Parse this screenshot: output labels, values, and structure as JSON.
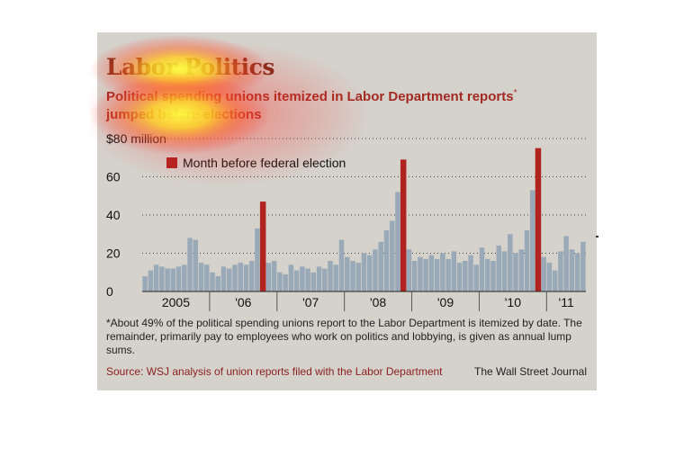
{
  "title": "Labor Politics",
  "subtitle": "Political spending unions itemized in Labor Department reports",
  "subtitle_marker": "*",
  "subtitle_line2": "jumped before elections",
  "footnote": "*About 49% of the political spending unions report to the Labor Department is itemized by date. The remainder, primarily pay to employees who work on politics and lobbying, is given as annual lump sums.",
  "source": "Source: WSJ analysis of union reports filed with the Labor Department",
  "credit": "The Wall Street Journal",
  "colors": {
    "background": "#d5d1cb",
    "bar": "#9aa9b8",
    "highlight": "#b0231f",
    "title": "#7a2a1c",
    "subtitle": "#a22a22"
  },
  "chart_data": {
    "type": "bar",
    "ylim": [
      0,
      80
    ],
    "yticks": [
      {
        "value": 0,
        "label": "0"
      },
      {
        "value": 20,
        "label": "20"
      },
      {
        "value": 40,
        "label": "40"
      },
      {
        "value": 60,
        "label": "60"
      },
      {
        "value": 80,
        "label": "$80 million"
      }
    ],
    "grid": "dotted",
    "legend": {
      "label": "Month before federal election",
      "color": "#b0231f",
      "placement": "top-left"
    },
    "start_month": "Jan 2005",
    "year_labels": [
      "2005",
      "'06",
      "'07",
      "'08",
      "'09",
      "'10",
      "'11"
    ],
    "values": [
      8,
      11,
      14,
      13,
      12,
      12,
      13,
      14,
      28,
      27,
      15,
      14,
      10,
      8,
      13,
      12,
      14,
      15,
      14,
      16,
      33,
      47,
      15,
      16,
      10,
      9,
      14,
      11,
      13,
      12,
      10,
      13,
      12,
      16,
      14,
      27,
      18,
      16,
      15,
      20,
      19,
      22,
      26,
      32,
      37,
      52,
      69,
      22,
      16,
      18,
      17,
      19,
      17,
      20,
      17,
      21,
      15,
      16,
      19,
      14,
      23,
      17,
      16,
      24,
      21,
      30,
      20,
      22,
      32,
      53,
      75,
      18,
      15,
      11,
      21,
      29,
      22,
      20,
      26
    ],
    "highlighted_months": [
      "Oct 2006",
      "Oct 2008",
      "Oct 2010"
    ],
    "highlight_indices": [
      21,
      46,
      70
    ]
  }
}
